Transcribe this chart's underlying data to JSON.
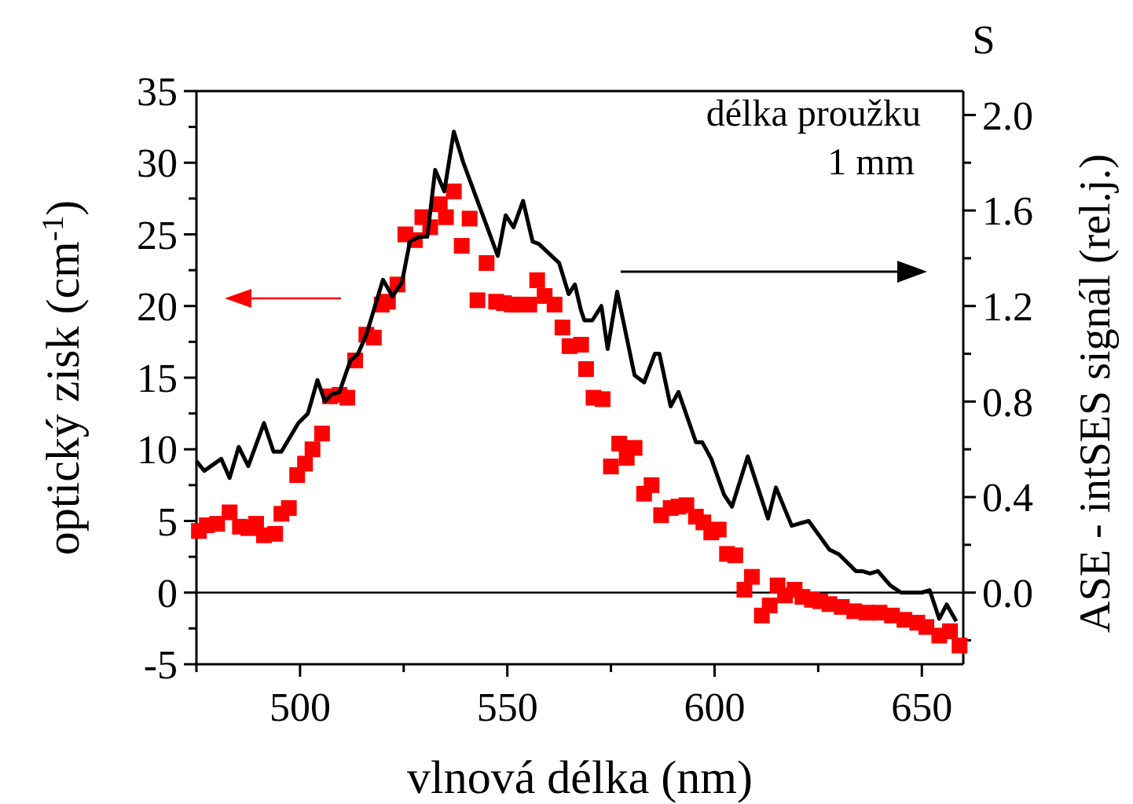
{
  "chart_data": {
    "type": "scatter",
    "xlabel": "vlnová délka (nm)",
    "ylabel": "optický zisk (cm$^{-1}$)",
    "y2label": "ASE - intSES signál (rel.j.)",
    "annotations": [
      "délka proužku",
      "1 mm",
      "S"
    ],
    "xlim": [
      475,
      660
    ],
    "xticks": [
      {
        "value": 475,
        "label": null
      },
      500,
      {
        "value": 525,
        "label": null
      },
      550,
      {
        "value": 575,
        "label": null
      },
      600,
      {
        "value": 625,
        "label": null
      },
      650
    ],
    "ylim": [
      -5,
      35
    ],
    "yticks": [
      -5,
      {
        "value": -2.5,
        "label": null
      },
      0,
      {
        "value": 2.5,
        "label": null
      },
      5,
      {
        "value": 7.5,
        "label": null
      },
      10,
      {
        "value": 12.5,
        "label": null
      },
      15,
      {
        "value": 17.5,
        "label": null
      },
      20,
      {
        "value": 22.5,
        "label": null
      },
      25,
      {
        "value": 27.5,
        "label": null
      },
      30,
      {
        "value": 32.5,
        "label": null
      },
      35
    ],
    "y2lim": [
      -0.3,
      2.1
    ],
    "y2ticks": [
      {
        "value": -0.2,
        "label": null
      },
      {
        "value": 0,
        "label": "0.0"
      },
      {
        "value": 0.2,
        "label": null
      },
      {
        "value": 0.4,
        "label": "0.4"
      },
      {
        "value": 0.6,
        "label": null
      },
      {
        "value": 0.8,
        "label": "0.8"
      },
      {
        "value": 1.0,
        "label": null
      },
      {
        "value": 1.2,
        "label": "1.2"
      },
      {
        "value": 1.4,
        "label": null
      },
      {
        "value": 1.6,
        "label": "1.6"
      },
      {
        "value": 1.8,
        "label": null
      },
      {
        "value": 2.0,
        "label": "2.0"
      }
    ],
    "ref_lines": [
      {
        "axis": "y",
        "value": 0,
        "color": "#000000"
      }
    ],
    "grid": false,
    "series": [
      {
        "marker": "square",
        "color": "#ff0000",
        "x": [
          475.6,
          477.5,
          480,
          483,
          485.5,
          487.5,
          489.4,
          491.3,
          494,
          495.5,
          497.3,
          499.3,
          501.2,
          503,
          505.3,
          507.2,
          509.5,
          511.4,
          513.3,
          516,
          517.8,
          519.7,
          521.2,
          523.5,
          525.4,
          527.7,
          529.5,
          531.4,
          533.7,
          535.2,
          537.1,
          539,
          540.9,
          542.8,
          545,
          547.3,
          549.2,
          551.1,
          553,
          555.3,
          557.2,
          559,
          561.4,
          563.3,
          565,
          567.8,
          569,
          570.8,
          573,
          575,
          577,
          578.8,
          580.7,
          583,
          584.8,
          587.1,
          589.4,
          591.3,
          593.2,
          595.5,
          597.3,
          599.2,
          601,
          603,
          605,
          607.2,
          609,
          611.4,
          613.3,
          615.2,
          617,
          619.3,
          621.2,
          623.5,
          625.5,
          627.7,
          630.7,
          633.7,
          636.7,
          639.8,
          642.8,
          645.8,
          648.9,
          651.1,
          654.2,
          656.8,
          659.1
        ],
        "values": [
          4.3,
          4.7,
          4.8,
          5.6,
          4.6,
          4.5,
          4.8,
          4.0,
          4.1,
          5.5,
          5.9,
          8.2,
          9.0,
          10.0,
          11.1,
          13.7,
          13.8,
          13.6,
          16.2,
          18.0,
          17.8,
          20.1,
          20.3,
          21.5,
          25.0,
          24.6,
          26.2,
          25.5,
          27.1,
          26.2,
          28.0,
          24.2,
          26.1,
          20.4,
          23.0,
          20.3,
          20.2,
          20.1,
          20.1,
          20.1,
          21.8,
          20.7,
          20.1,
          18.5,
          17.2,
          17.3,
          15.6,
          13.6,
          13.5,
          8.8,
          10.4,
          9.4,
          10.1,
          6.9,
          7.5,
          5.4,
          5.9,
          6.0,
          6.1,
          5.3,
          4.9,
          4.2,
          4.4,
          2.7,
          2.6,
          0.2,
          1.1,
          -1.6,
          -0.9,
          0.5,
          -0.2,
          0.2,
          -0.3,
          -0.5,
          -0.6,
          -0.8,
          -1.0,
          -1.3,
          -1.4,
          -1.4,
          -1.6,
          -1.9,
          -2.1,
          -2.4,
          -3.0,
          -2.7,
          -3.7
        ]
      },
      {
        "type": "line",
        "axis": "y2",
        "line_style": "solid",
        "color": "#000000",
        "x": [
          475,
          476.9,
          481,
          483,
          485.2,
          487.5,
          491.3,
          493.6,
          495.5,
          499.6,
          501.9,
          504.2,
          506,
          507.6,
          509.5,
          512.1,
          514,
          516,
          520,
          522.3,
          524.6,
          526.5,
          528.8,
          530.7,
          532.6,
          534.8,
          537.1,
          539.4,
          547.7,
          549.6,
          551.5,
          553.8,
          556.1,
          557.6,
          562.5,
          564.8,
          566.3,
          567.8,
          568.6,
          570.5,
          572.7,
          574.2,
          576.5,
          580.7,
          583,
          585.6,
          586.7,
          589.4,
          591.3,
          595.5,
          597,
          599.2,
          602.3,
          604.2,
          608,
          612.9,
          614.8,
          618.6,
          622.7,
          627.7,
          630,
          634.1,
          635.6,
          637.5,
          639.4,
          642.4,
          645,
          650,
          651.9,
          654.2,
          656,
          658.3
        ],
        "values": [
          0.55,
          0.51,
          0.56,
          0.48,
          0.61,
          0.53,
          0.71,
          0.59,
          0.59,
          0.71,
          0.75,
          0.89,
          0.8,
          0.83,
          0.84,
          0.97,
          1.0,
          1.08,
          1.31,
          1.24,
          1.3,
          1.47,
          1.49,
          1.49,
          1.77,
          1.68,
          1.93,
          1.8,
          1.41,
          1.58,
          1.53,
          1.64,
          1.47,
          1.46,
          1.38,
          1.25,
          1.29,
          1.18,
          1.14,
          1.14,
          1.2,
          1.02,
          1.26,
          0.91,
          0.88,
          1.0,
          1.0,
          0.78,
          0.84,
          0.63,
          0.63,
          0.56,
          0.41,
          0.36,
          0.57,
          0.31,
          0.44,
          0.28,
          0.3,
          0.18,
          0.16,
          0.09,
          0.09,
          0.08,
          0.09,
          0.03,
          0.0,
          0.0,
          0.01,
          -0.11,
          -0.05,
          -0.12
        ]
      }
    ]
  }
}
